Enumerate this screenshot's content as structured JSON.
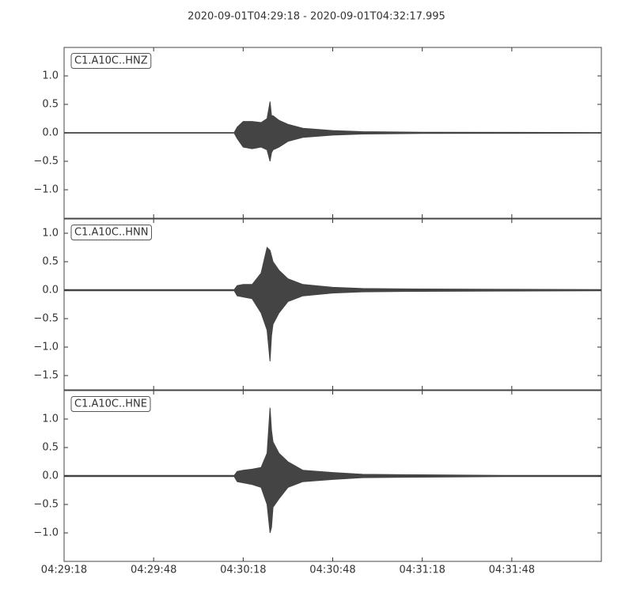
{
  "title": "2020-09-01T04:29:18  -  2020-09-01T04:32:17.995",
  "chart_data": [
    {
      "type": "area-band",
      "x": [
        0,
        57,
        58,
        60,
        63,
        66,
        68,
        69,
        69.5,
        70,
        72,
        75,
        80,
        90,
        100,
        120,
        150,
        180
      ],
      "xlim": [
        0,
        180
      ],
      "ylim": [
        -1.5,
        1.5
      ],
      "yticks": [
        {
          "value": -1,
          "label": "−1.0"
        },
        {
          "value": -0.5,
          "label": "−0.5"
        },
        {
          "value": 0,
          "label": "0.0"
        },
        {
          "value": 0.5,
          "label": "0.5"
        },
        {
          "value": 1,
          "label": "1.0"
        }
      ],
      "series": [
        {
          "name": "C1.A10C..HNZ",
          "color": "#444444",
          "upper": [
            0.005,
            0.005,
            0.1,
            0.2,
            0.2,
            0.18,
            0.25,
            0.55,
            0.3,
            0.3,
            0.22,
            0.15,
            0.08,
            0.04,
            0.02,
            0.01,
            0.008,
            0.005
          ],
          "lower": [
            -0.005,
            -0.005,
            -0.1,
            -0.25,
            -0.28,
            -0.25,
            -0.3,
            -0.5,
            -0.35,
            -0.3,
            -0.25,
            -0.15,
            -0.08,
            -0.04,
            -0.02,
            -0.01,
            -0.008,
            -0.005
          ]
        }
      ]
    },
    {
      "type": "area-band",
      "x": [
        0,
        57,
        58,
        60,
        63,
        66,
        68,
        69,
        69.5,
        70,
        72,
        75,
        80,
        90,
        100,
        120,
        150,
        180
      ],
      "xlim": [
        0,
        180
      ],
      "ylim": [
        -1.75,
        1.25
      ],
      "yticks": [
        {
          "value": -1.5,
          "label": "−1.5"
        },
        {
          "value": -1,
          "label": "−1.0"
        },
        {
          "value": -0.5,
          "label": "−0.5"
        },
        {
          "value": 0,
          "label": "0.0"
        },
        {
          "value": 0.5,
          "label": "0.5"
        },
        {
          "value": 1,
          "label": "1.0"
        }
      ],
      "series": [
        {
          "name": "C1.A10C..HNN",
          "color": "#444444",
          "upper": [
            0.01,
            0.01,
            0.08,
            0.1,
            0.1,
            0.3,
            0.75,
            0.7,
            0.6,
            0.5,
            0.35,
            0.2,
            0.1,
            0.05,
            0.03,
            0.02,
            0.015,
            0.01
          ],
          "lower": [
            -0.01,
            -0.01,
            -0.1,
            -0.12,
            -0.15,
            -0.4,
            -0.7,
            -1.25,
            -0.8,
            -0.6,
            -0.4,
            -0.2,
            -0.1,
            -0.05,
            -0.03,
            -0.02,
            -0.015,
            -0.01
          ]
        }
      ]
    },
    {
      "type": "area-band",
      "x": [
        0,
        57,
        58,
        60,
        63,
        66,
        68,
        69,
        69.5,
        70,
        72,
        75,
        80,
        90,
        100,
        120,
        150,
        180
      ],
      "xlim": [
        0,
        180
      ],
      "ylim": [
        -1.5,
        1.5
      ],
      "yticks": [
        {
          "value": -1,
          "label": "−1.0"
        },
        {
          "value": -0.5,
          "label": "−0.5"
        },
        {
          "value": 0,
          "label": "0.0"
        },
        {
          "value": 0.5,
          "label": "0.5"
        },
        {
          "value": 1,
          "label": "1.0"
        }
      ],
      "xticks": [
        {
          "value": 0,
          "label": "04:29:18"
        },
        {
          "value": 30,
          "label": "04:29:48"
        },
        {
          "value": 60,
          "label": "04:30:18"
        },
        {
          "value": 90,
          "label": "04:30:48"
        },
        {
          "value": 120,
          "label": "04:31:18"
        },
        {
          "value": 150,
          "label": "04:31:48"
        }
      ],
      "series": [
        {
          "name": "C1.A10C..HNE",
          "color": "#444444",
          "upper": [
            0.01,
            0.01,
            0.08,
            0.1,
            0.12,
            0.15,
            0.4,
            1.2,
            0.8,
            0.6,
            0.4,
            0.25,
            0.1,
            0.06,
            0.03,
            0.02,
            0.01,
            0.01
          ],
          "lower": [
            -0.01,
            -0.01,
            -0.1,
            -0.12,
            -0.15,
            -0.2,
            -0.5,
            -1.0,
            -0.9,
            -0.55,
            -0.4,
            -0.2,
            -0.1,
            -0.06,
            -0.03,
            -0.02,
            -0.01,
            -0.01
          ]
        }
      ]
    }
  ]
}
